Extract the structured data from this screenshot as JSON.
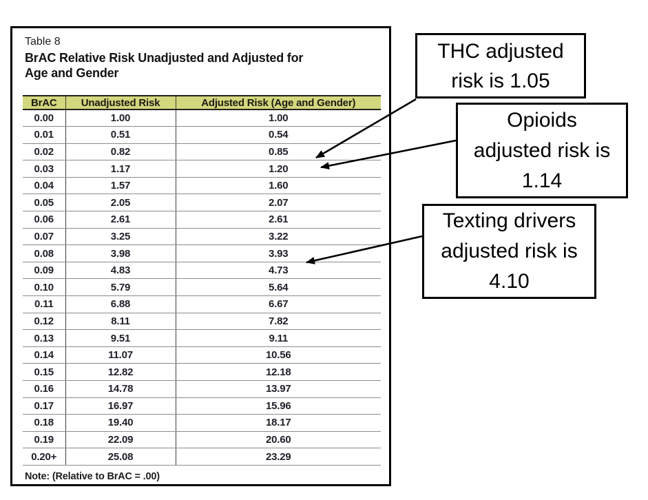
{
  "panel": {
    "caption": "Table 8",
    "heading_line1": "BrAC Relative Risk Unadjusted and Adjusted for",
    "heading_line2": "Age and Gender",
    "note": "Note: (Relative to BrAC = .00)"
  },
  "table": {
    "columns": [
      "BrAC",
      "Unadjusted Risk",
      "Adjusted Risk (Age and Gender)"
    ],
    "rows": [
      [
        "0.00",
        "1.00",
        "1.00"
      ],
      [
        "0.01",
        "0.51",
        "0.54"
      ],
      [
        "0.02",
        "0.82",
        "0.85"
      ],
      [
        "0.03",
        "1.17",
        "1.20"
      ],
      [
        "0.04",
        "1.57",
        "1.60"
      ],
      [
        "0.05",
        "2.05",
        "2.07"
      ],
      [
        "0.06",
        "2.61",
        "2.61"
      ],
      [
        "0.07",
        "3.25",
        "3.22"
      ],
      [
        "0.08",
        "3.98",
        "3.93"
      ],
      [
        "0.09",
        "4.83",
        "4.73"
      ],
      [
        "0.10",
        "5.79",
        "5.64"
      ],
      [
        "0.11",
        "6.88",
        "6.67"
      ],
      [
        "0.12",
        "8.11",
        "7.82"
      ],
      [
        "0.13",
        "9.51",
        "9.11"
      ],
      [
        "0.14",
        "11.07",
        "10.56"
      ],
      [
        "0.15",
        "12.82",
        "12.18"
      ],
      [
        "0.16",
        "14.78",
        "13.97"
      ],
      [
        "0.17",
        "16.97",
        "15.96"
      ],
      [
        "0.18",
        "19.40",
        "18.17"
      ],
      [
        "0.19",
        "22.09",
        "20.60"
      ],
      [
        "0.20+",
        "25.08",
        "23.29"
      ]
    ]
  },
  "chart_data": {
    "type": "table",
    "title": "BrAC Relative Risk Unadjusted and Adjusted for Age and Gender",
    "categories": [
      "0.00",
      "0.01",
      "0.02",
      "0.03",
      "0.04",
      "0.05",
      "0.06",
      "0.07",
      "0.08",
      "0.09",
      "0.10",
      "0.11",
      "0.12",
      "0.13",
      "0.14",
      "0.15",
      "0.16",
      "0.17",
      "0.18",
      "0.19",
      "0.20+"
    ],
    "series": [
      {
        "name": "Unadjusted Risk",
        "values": [
          1.0,
          0.51,
          0.82,
          1.17,
          1.57,
          2.05,
          2.61,
          3.25,
          3.98,
          4.83,
          5.79,
          6.88,
          8.11,
          9.51,
          11.07,
          12.82,
          14.78,
          16.97,
          19.4,
          22.09,
          25.08
        ]
      },
      {
        "name": "Adjusted Risk (Age and Gender)",
        "values": [
          1.0,
          0.54,
          0.85,
          1.2,
          1.6,
          2.07,
          2.61,
          3.22,
          3.93,
          4.73,
          5.64,
          6.67,
          7.82,
          9.11,
          10.56,
          12.18,
          13.97,
          15.96,
          18.17,
          20.6,
          23.29
        ]
      }
    ],
    "annotations": [
      "THC adjusted risk is 1.05",
      "Opioids adjusted risk is 1.14",
      "Texting drivers adjusted risk is 4.10"
    ]
  },
  "callouts": {
    "thc": {
      "line1": "THC adjusted",
      "line2": "risk is 1.05"
    },
    "opioids": {
      "line1": "Opioids",
      "line2": "adjusted risk is",
      "line3": "1.14"
    },
    "texting": {
      "line1": "Texting drivers",
      "line2": "adjusted risk is",
      "line3": "4.10"
    }
  },
  "colors": {
    "header_bg": "#d3d77d",
    "panel_border": "#000000",
    "row_line": "#8b8b8b",
    "arrow": "#000000"
  }
}
